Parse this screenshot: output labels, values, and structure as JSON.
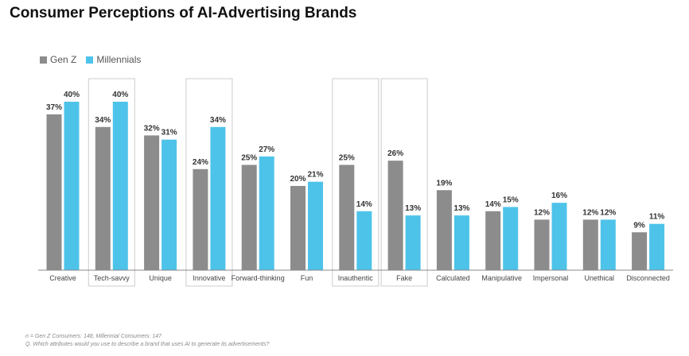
{
  "chart_data": {
    "type": "bar",
    "title": "Consumer Perceptions of AI-Advertising Brands",
    "categories": [
      "Creative",
      "Tech-savvy",
      "Unique",
      "Innovative",
      "Forward-thinking",
      "Fun",
      "Inauthentic",
      "Fake",
      "Calculated",
      "Manipulative",
      "Impersonal",
      "Unethical",
      "Disconnected"
    ],
    "series": [
      {
        "name": "Gen Z",
        "color": "#8c8c8c",
        "values": [
          37,
          34,
          32,
          24,
          25,
          20,
          25,
          26,
          19,
          14,
          12,
          12,
          9
        ],
        "labels": [
          "37%",
          "34%",
          "32%",
          "24%",
          "25%",
          "20%",
          "25%",
          "26%",
          "19%",
          "14%",
          "12%",
          "12%",
          "9%"
        ]
      },
      {
        "name": "Millennials",
        "color": "#4ec3ea",
        "values": [
          40,
          40,
          31,
          34,
          27,
          21,
          14,
          13,
          13,
          15,
          16,
          12,
          11
        ],
        "labels": [
          "40%",
          "40%",
          "31%",
          "34%",
          "27%",
          "21%",
          "14%",
          "13%",
          "13%",
          "15%",
          "16%",
          "12%",
          "11%"
        ]
      }
    ],
    "highlighted_categories": [
      "Tech-savvy",
      "Innovative",
      "Inauthentic",
      "Fake"
    ],
    "ylim": [
      0,
      40
    ],
    "xlabel": "",
    "ylabel": "",
    "grid": false,
    "legend_position": "top-left",
    "footnotes": [
      "n = Gen Z Consumers: 148, Millennial Consumers: 147",
      "Q. Which attributes would you use to describe a brand that uses AI to generate its advertisements?"
    ]
  },
  "colors": {
    "gen_z": "#8c8c8c",
    "millennials": "#4ec3ea",
    "highlight_box": "#cccccc",
    "axis": "#888888"
  }
}
